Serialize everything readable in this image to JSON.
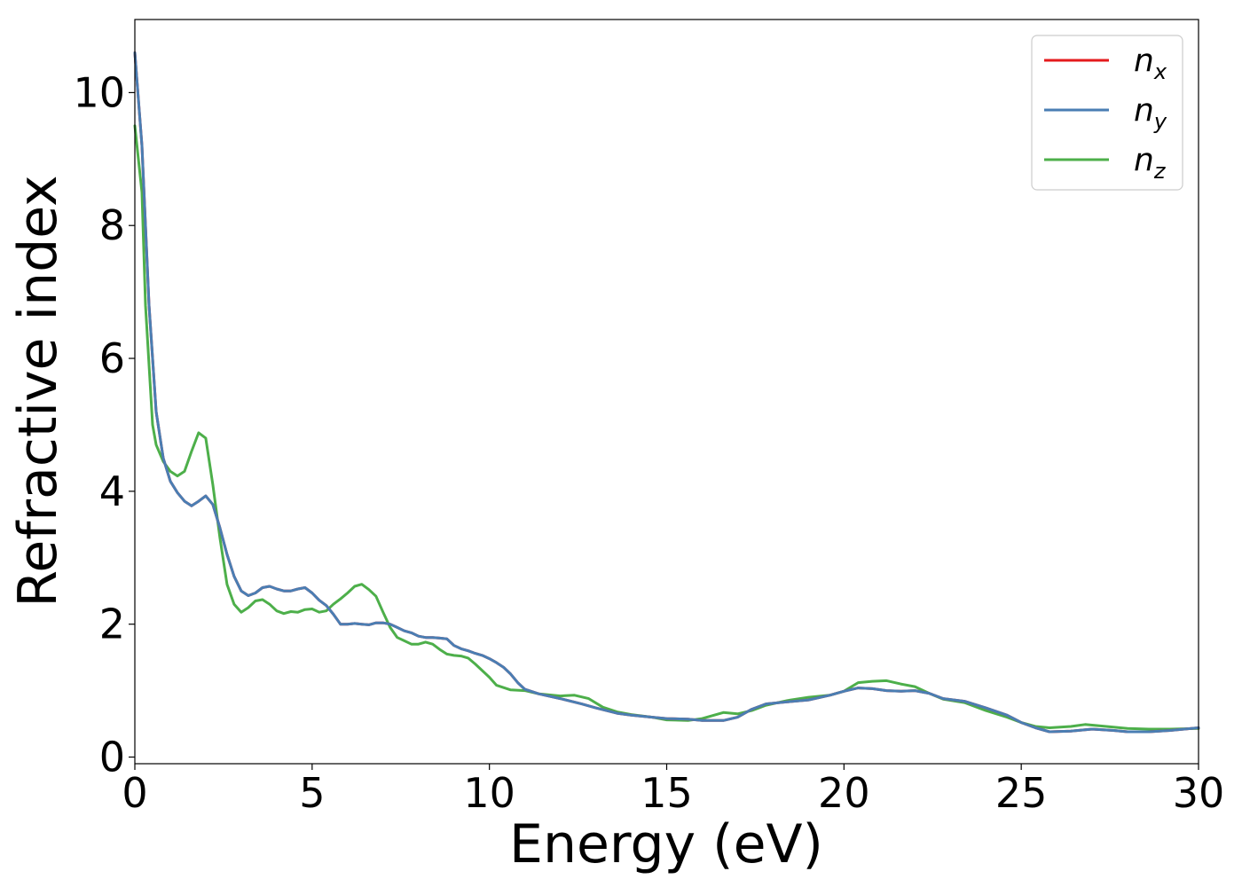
{
  "chart_data": {
    "type": "line",
    "xlabel": "Energy (eV)",
    "ylabel": "Refractive index",
    "xlim": [
      0,
      30
    ],
    "ylim": [
      -0.1,
      11.1
    ],
    "x_ticks": [
      0,
      5,
      10,
      15,
      20,
      25,
      30
    ],
    "y_ticks": [
      0,
      2,
      4,
      6,
      8,
      10
    ],
    "grid": false,
    "legend_position": "top-right",
    "series": [
      {
        "name": "n",
        "subscript": "x",
        "color": "#e41a1c",
        "points": [
          [
            0,
            10.6
          ],
          [
            0.2,
            9.2
          ],
          [
            0.4,
            6.8
          ],
          [
            0.6,
            5.2
          ],
          [
            0.8,
            4.5
          ],
          [
            1.0,
            4.15
          ],
          [
            1.2,
            3.98
          ],
          [
            1.4,
            3.85
          ],
          [
            1.6,
            3.78
          ],
          [
            1.8,
            3.85
          ],
          [
            2.0,
            3.93
          ],
          [
            2.2,
            3.8
          ],
          [
            2.4,
            3.45
          ],
          [
            2.6,
            3.05
          ],
          [
            2.8,
            2.72
          ],
          [
            3.0,
            2.5
          ],
          [
            3.2,
            2.43
          ],
          [
            3.4,
            2.47
          ],
          [
            3.6,
            2.55
          ],
          [
            3.8,
            2.57
          ],
          [
            4.0,
            2.53
          ],
          [
            4.2,
            2.5
          ],
          [
            4.4,
            2.5
          ],
          [
            4.6,
            2.53
          ],
          [
            4.8,
            2.55
          ],
          [
            5.0,
            2.47
          ],
          [
            5.2,
            2.36
          ],
          [
            5.4,
            2.28
          ],
          [
            5.6,
            2.15
          ],
          [
            5.8,
            2.0
          ],
          [
            6.0,
            2.0
          ],
          [
            6.2,
            2.01
          ],
          [
            6.4,
            2.0
          ],
          [
            6.6,
            1.99
          ],
          [
            6.8,
            2.02
          ],
          [
            7.0,
            2.02
          ],
          [
            7.2,
            2.0
          ],
          [
            7.4,
            1.95
          ],
          [
            7.6,
            1.9
          ],
          [
            7.8,
            1.87
          ],
          [
            8.0,
            1.82
          ],
          [
            8.2,
            1.8
          ],
          [
            8.4,
            1.8
          ],
          [
            8.6,
            1.79
          ],
          [
            8.8,
            1.78
          ],
          [
            9.0,
            1.68
          ],
          [
            9.2,
            1.63
          ],
          [
            9.4,
            1.6
          ],
          [
            9.6,
            1.56
          ],
          [
            9.8,
            1.53
          ],
          [
            10.0,
            1.48
          ],
          [
            10.2,
            1.42
          ],
          [
            10.4,
            1.35
          ],
          [
            10.6,
            1.25
          ],
          [
            10.8,
            1.12
          ],
          [
            11.0,
            1.02
          ],
          [
            11.4,
            0.95
          ],
          [
            12.0,
            0.88
          ],
          [
            12.6,
            0.8
          ],
          [
            13.0,
            0.74
          ],
          [
            13.6,
            0.66
          ],
          [
            14.0,
            0.63
          ],
          [
            14.6,
            0.6
          ],
          [
            15.0,
            0.58
          ],
          [
            15.6,
            0.57
          ],
          [
            16.0,
            0.55
          ],
          [
            16.6,
            0.55
          ],
          [
            17.0,
            0.6
          ],
          [
            17.4,
            0.72
          ],
          [
            17.8,
            0.8
          ],
          [
            18.4,
            0.83
          ],
          [
            19.0,
            0.86
          ],
          [
            19.6,
            0.93
          ],
          [
            20.0,
            0.99
          ],
          [
            20.4,
            1.04
          ],
          [
            20.8,
            1.03
          ],
          [
            21.2,
            1.0
          ],
          [
            21.6,
            0.99
          ],
          [
            22.0,
            1.0
          ],
          [
            22.4,
            0.96
          ],
          [
            22.8,
            0.88
          ],
          [
            23.4,
            0.84
          ],
          [
            24.0,
            0.74
          ],
          [
            24.6,
            0.63
          ],
          [
            25.0,
            0.52
          ],
          [
            25.4,
            0.44
          ],
          [
            25.8,
            0.38
          ],
          [
            26.4,
            0.39
          ],
          [
            27.0,
            0.42
          ],
          [
            27.6,
            0.4
          ],
          [
            28.0,
            0.38
          ],
          [
            28.6,
            0.38
          ],
          [
            29.2,
            0.4
          ],
          [
            30.0,
            0.44
          ]
        ]
      },
      {
        "name": "n",
        "subscript": "y",
        "color": "#4a7eb3",
        "points": [
          [
            0,
            10.6
          ],
          [
            0.2,
            9.2
          ],
          [
            0.4,
            6.8
          ],
          [
            0.6,
            5.2
          ],
          [
            0.8,
            4.5
          ],
          [
            1.0,
            4.15
          ],
          [
            1.2,
            3.98
          ],
          [
            1.4,
            3.85
          ],
          [
            1.6,
            3.78
          ],
          [
            1.8,
            3.85
          ],
          [
            2.0,
            3.93
          ],
          [
            2.2,
            3.8
          ],
          [
            2.4,
            3.45
          ],
          [
            2.6,
            3.05
          ],
          [
            2.8,
            2.72
          ],
          [
            3.0,
            2.5
          ],
          [
            3.2,
            2.43
          ],
          [
            3.4,
            2.47
          ],
          [
            3.6,
            2.55
          ],
          [
            3.8,
            2.57
          ],
          [
            4.0,
            2.53
          ],
          [
            4.2,
            2.5
          ],
          [
            4.4,
            2.5
          ],
          [
            4.6,
            2.53
          ],
          [
            4.8,
            2.55
          ],
          [
            5.0,
            2.47
          ],
          [
            5.2,
            2.36
          ],
          [
            5.4,
            2.28
          ],
          [
            5.6,
            2.15
          ],
          [
            5.8,
            2.0
          ],
          [
            6.0,
            2.0
          ],
          [
            6.2,
            2.01
          ],
          [
            6.4,
            2.0
          ],
          [
            6.6,
            1.99
          ],
          [
            6.8,
            2.02
          ],
          [
            7.0,
            2.02
          ],
          [
            7.2,
            2.0
          ],
          [
            7.4,
            1.95
          ],
          [
            7.6,
            1.9
          ],
          [
            7.8,
            1.87
          ],
          [
            8.0,
            1.82
          ],
          [
            8.2,
            1.8
          ],
          [
            8.4,
            1.8
          ],
          [
            8.6,
            1.79
          ],
          [
            8.8,
            1.78
          ],
          [
            9.0,
            1.68
          ],
          [
            9.2,
            1.63
          ],
          [
            9.4,
            1.6
          ],
          [
            9.6,
            1.56
          ],
          [
            9.8,
            1.53
          ],
          [
            10.0,
            1.48
          ],
          [
            10.2,
            1.42
          ],
          [
            10.4,
            1.35
          ],
          [
            10.6,
            1.25
          ],
          [
            10.8,
            1.12
          ],
          [
            11.0,
            1.02
          ],
          [
            11.4,
            0.95
          ],
          [
            12.0,
            0.88
          ],
          [
            12.6,
            0.8
          ],
          [
            13.0,
            0.74
          ],
          [
            13.6,
            0.66
          ],
          [
            14.0,
            0.63
          ],
          [
            14.6,
            0.6
          ],
          [
            15.0,
            0.58
          ],
          [
            15.6,
            0.57
          ],
          [
            16.0,
            0.55
          ],
          [
            16.6,
            0.55
          ],
          [
            17.0,
            0.6
          ],
          [
            17.4,
            0.72
          ],
          [
            17.8,
            0.8
          ],
          [
            18.4,
            0.83
          ],
          [
            19.0,
            0.86
          ],
          [
            19.6,
            0.93
          ],
          [
            20.0,
            0.99
          ],
          [
            20.4,
            1.04
          ],
          [
            20.8,
            1.03
          ],
          [
            21.2,
            1.0
          ],
          [
            21.6,
            0.99
          ],
          [
            22.0,
            1.0
          ],
          [
            22.4,
            0.96
          ],
          [
            22.8,
            0.88
          ],
          [
            23.4,
            0.84
          ],
          [
            24.0,
            0.74
          ],
          [
            24.6,
            0.63
          ],
          [
            25.0,
            0.52
          ],
          [
            25.4,
            0.44
          ],
          [
            25.8,
            0.38
          ],
          [
            26.4,
            0.39
          ],
          [
            27.0,
            0.42
          ],
          [
            27.6,
            0.4
          ],
          [
            28.0,
            0.38
          ],
          [
            28.6,
            0.38
          ],
          [
            29.2,
            0.4
          ],
          [
            30.0,
            0.44
          ]
        ]
      },
      {
        "name": "n",
        "subscript": "z",
        "color": "#4daf4a",
        "points": [
          [
            0,
            9.5
          ],
          [
            0.2,
            8.5
          ],
          [
            0.3,
            6.8
          ],
          [
            0.5,
            5.0
          ],
          [
            0.6,
            4.7
          ],
          [
            0.8,
            4.45
          ],
          [
            1.0,
            4.3
          ],
          [
            1.2,
            4.23
          ],
          [
            1.4,
            4.3
          ],
          [
            1.6,
            4.6
          ],
          [
            1.8,
            4.88
          ],
          [
            2.0,
            4.8
          ],
          [
            2.2,
            4.1
          ],
          [
            2.4,
            3.3
          ],
          [
            2.6,
            2.6
          ],
          [
            2.8,
            2.3
          ],
          [
            3.0,
            2.18
          ],
          [
            3.2,
            2.25
          ],
          [
            3.4,
            2.35
          ],
          [
            3.6,
            2.37
          ],
          [
            3.8,
            2.3
          ],
          [
            4.0,
            2.2
          ],
          [
            4.2,
            2.16
          ],
          [
            4.4,
            2.19
          ],
          [
            4.6,
            2.18
          ],
          [
            4.8,
            2.22
          ],
          [
            5.0,
            2.23
          ],
          [
            5.2,
            2.18
          ],
          [
            5.4,
            2.2
          ],
          [
            5.6,
            2.3
          ],
          [
            5.8,
            2.38
          ],
          [
            6.0,
            2.47
          ],
          [
            6.2,
            2.57
          ],
          [
            6.4,
            2.6
          ],
          [
            6.6,
            2.52
          ],
          [
            6.8,
            2.42
          ],
          [
            7.0,
            2.18
          ],
          [
            7.2,
            1.95
          ],
          [
            7.4,
            1.8
          ],
          [
            7.6,
            1.75
          ],
          [
            7.8,
            1.7
          ],
          [
            8.0,
            1.7
          ],
          [
            8.2,
            1.73
          ],
          [
            8.4,
            1.7
          ],
          [
            8.6,
            1.62
          ],
          [
            8.8,
            1.55
          ],
          [
            9.0,
            1.53
          ],
          [
            9.2,
            1.52
          ],
          [
            9.4,
            1.49
          ],
          [
            9.6,
            1.4
          ],
          [
            9.8,
            1.3
          ],
          [
            10.0,
            1.2
          ],
          [
            10.2,
            1.08
          ],
          [
            10.6,
            1.01
          ],
          [
            11.0,
            1.0
          ],
          [
            11.4,
            0.95
          ],
          [
            12.0,
            0.92
          ],
          [
            12.4,
            0.93
          ],
          [
            12.8,
            0.88
          ],
          [
            13.2,
            0.75
          ],
          [
            13.6,
            0.68
          ],
          [
            14.0,
            0.64
          ],
          [
            14.6,
            0.6
          ],
          [
            15.0,
            0.56
          ],
          [
            15.6,
            0.55
          ],
          [
            16.0,
            0.58
          ],
          [
            16.6,
            0.67
          ],
          [
            17.0,
            0.65
          ],
          [
            17.4,
            0.7
          ],
          [
            17.8,
            0.78
          ],
          [
            18.4,
            0.85
          ],
          [
            19.0,
            0.9
          ],
          [
            19.6,
            0.93
          ],
          [
            20.0,
            0.99
          ],
          [
            20.4,
            1.12
          ],
          [
            20.8,
            1.14
          ],
          [
            21.2,
            1.15
          ],
          [
            21.6,
            1.1
          ],
          [
            22.0,
            1.06
          ],
          [
            22.4,
            0.96
          ],
          [
            22.8,
            0.87
          ],
          [
            23.4,
            0.82
          ],
          [
            24.0,
            0.7
          ],
          [
            24.6,
            0.6
          ],
          [
            25.0,
            0.52
          ],
          [
            25.4,
            0.46
          ],
          [
            25.8,
            0.44
          ],
          [
            26.4,
            0.46
          ],
          [
            26.8,
            0.49
          ],
          [
            27.4,
            0.46
          ],
          [
            28.0,
            0.43
          ],
          [
            28.6,
            0.42
          ],
          [
            29.2,
            0.42
          ],
          [
            30.0,
            0.43
          ]
        ]
      }
    ]
  }
}
